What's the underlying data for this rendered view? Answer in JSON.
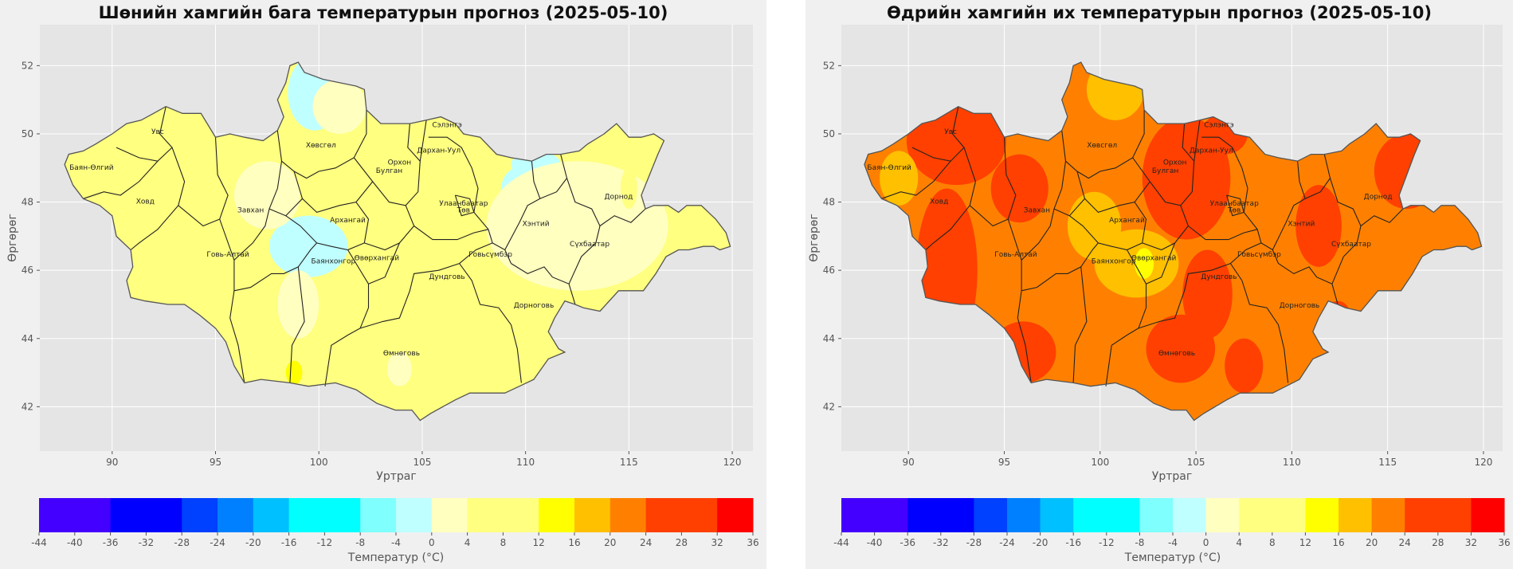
{
  "maps": [
    {
      "id": "left",
      "title": "Шөнийн хамгийн бага температурын прогноз (2025-05-10)",
      "xlabel": "Уртраг",
      "ylabel": "Өргөрөг",
      "xlim": [
        86.5,
        121
      ],
      "ylim": [
        40.7,
        53.2
      ],
      "xticks": [
        90,
        95,
        100,
        105,
        110,
        115,
        120
      ],
      "yticks": [
        42,
        44,
        46,
        48,
        50,
        52
      ],
      "base_color": "#ffff80",
      "grid": true,
      "colorbar_label": "Температур (°C)"
    },
    {
      "id": "right",
      "title": "Өдрийн хамгийн их температурын прогноз (2025-05-10)",
      "xlabel": "Уртраг",
      "ylabel": "Өргөрөг",
      "xlim": [
        86.5,
        121
      ],
      "ylim": [
        40.7,
        53.2
      ],
      "xticks": [
        90,
        95,
        100,
        105,
        110,
        115,
        120
      ],
      "yticks": [
        42,
        44,
        46,
        48,
        50,
        52
      ],
      "base_color": "#ff8000",
      "grid": true,
      "colorbar_label": "Температур (°C)"
    }
  ],
  "colorbar": {
    "ticks": [
      -44,
      -40,
      -36,
      -32,
      -28,
      -24,
      -20,
      -16,
      -12,
      -8,
      -4,
      0,
      4,
      8,
      12,
      16,
      20,
      24,
      28,
      32,
      36
    ],
    "bins": [
      {
        "from": -44,
        "to": -36,
        "color": "#4400ff"
      },
      {
        "from": -36,
        "to": -28,
        "color": "#0000ff"
      },
      {
        "from": -28,
        "to": -24,
        "color": "#0040ff"
      },
      {
        "from": -24,
        "to": -20,
        "color": "#0080ff"
      },
      {
        "from": -20,
        "to": -16,
        "color": "#00c0ff"
      },
      {
        "from": -16,
        "to": -8,
        "color": "#00ffff"
      },
      {
        "from": -8,
        "to": -4,
        "color": "#80ffff"
      },
      {
        "from": -4,
        "to": 0,
        "color": "#c0ffff"
      },
      {
        "from": 0,
        "to": 4,
        "color": "#ffffc0"
      },
      {
        "from": 4,
        "to": 12,
        "color": "#ffff80"
      },
      {
        "from": 12,
        "to": 16,
        "color": "#ffff00"
      },
      {
        "from": 16,
        "to": 20,
        "color": "#ffc000"
      },
      {
        "from": 20,
        "to": 24,
        "color": "#ff8000"
      },
      {
        "from": 24,
        "to": 32,
        "color": "#ff4000"
      },
      {
        "from": 32,
        "to": 36,
        "color": "#ff0000"
      }
    ]
  },
  "border": [
    [
      87.7,
      49.1
    ],
    [
      87.9,
      49.4
    ],
    [
      88.6,
      49.5
    ],
    [
      89.2,
      49.7
    ],
    [
      90.0,
      50.0
    ],
    [
      90.7,
      50.3
    ],
    [
      91.4,
      50.4
    ],
    [
      92.0,
      50.6
    ],
    [
      92.6,
      50.8
    ],
    [
      93.4,
      50.6
    ],
    [
      94.3,
      50.6
    ],
    [
      95.0,
      49.9
    ],
    [
      95.7,
      50.0
    ],
    [
      96.4,
      49.9
    ],
    [
      97.3,
      49.8
    ],
    [
      98.0,
      50.1
    ],
    [
      98.3,
      50.5
    ],
    [
      98.0,
      51.0
    ],
    [
      98.4,
      51.5
    ],
    [
      98.6,
      52.0
    ],
    [
      99.0,
      52.1
    ],
    [
      99.3,
      51.8
    ],
    [
      100.2,
      51.6
    ],
    [
      101.0,
      51.5
    ],
    [
      101.8,
      51.4
    ],
    [
      102.2,
      51.3
    ],
    [
      102.3,
      50.7
    ],
    [
      103.0,
      50.3
    ],
    [
      103.7,
      50.3
    ],
    [
      104.4,
      50.3
    ],
    [
      105.2,
      50.4
    ],
    [
      105.9,
      50.5
    ],
    [
      106.6,
      50.3
    ],
    [
      107.0,
      50.0
    ],
    [
      107.8,
      49.9
    ],
    [
      108.6,
      49.4
    ],
    [
      109.3,
      49.3
    ],
    [
      110.3,
      49.2
    ],
    [
      111.0,
      49.4
    ],
    [
      111.7,
      49.4
    ],
    [
      112.6,
      49.5
    ],
    [
      113.0,
      49.7
    ],
    [
      113.8,
      50.0
    ],
    [
      114.4,
      50.3
    ],
    [
      115.0,
      49.9
    ],
    [
      115.6,
      49.9
    ],
    [
      116.2,
      50.0
    ],
    [
      116.7,
      49.8
    ],
    [
      116.4,
      49.4
    ],
    [
      115.6,
      48.2
    ],
    [
      115.8,
      47.8
    ],
    [
      116.2,
      47.9
    ],
    [
      116.9,
      47.9
    ],
    [
      117.4,
      47.7
    ],
    [
      117.8,
      47.9
    ],
    [
      118.5,
      47.9
    ],
    [
      119.2,
      47.5
    ],
    [
      119.7,
      47.1
    ],
    [
      119.9,
      46.7
    ],
    [
      119.4,
      46.6
    ],
    [
      119.1,
      46.7
    ],
    [
      118.6,
      46.7
    ],
    [
      117.9,
      46.6
    ],
    [
      117.4,
      46.6
    ],
    [
      116.8,
      46.4
    ],
    [
      116.6,
      46.2
    ],
    [
      116.3,
      45.9
    ],
    [
      115.7,
      45.4
    ],
    [
      115.0,
      45.4
    ],
    [
      114.5,
      45.4
    ],
    [
      113.6,
      44.8
    ],
    [
      112.8,
      44.9
    ],
    [
      112.4,
      45.0
    ],
    [
      111.9,
      45.1
    ],
    [
      111.4,
      44.6
    ],
    [
      111.1,
      44.2
    ],
    [
      111.6,
      43.7
    ],
    [
      111.9,
      43.6
    ],
    [
      111.1,
      43.4
    ],
    [
      110.4,
      42.8
    ],
    [
      109.7,
      42.6
    ],
    [
      109.0,
      42.4
    ],
    [
      108.1,
      42.4
    ],
    [
      107.3,
      42.4
    ],
    [
      106.6,
      42.2
    ],
    [
      105.4,
      41.8
    ],
    [
      104.9,
      41.6
    ],
    [
      104.5,
      41.9
    ],
    [
      103.7,
      41.9
    ],
    [
      102.8,
      42.1
    ],
    [
      101.8,
      42.5
    ],
    [
      100.8,
      42.7
    ],
    [
      99.5,
      42.6
    ],
    [
      98.6,
      42.7
    ],
    [
      97.2,
      42.8
    ],
    [
      96.4,
      42.7
    ],
    [
      95.9,
      43.2
    ],
    [
      95.5,
      43.9
    ],
    [
      95.0,
      44.3
    ],
    [
      94.2,
      44.7
    ],
    [
      93.5,
      45.0
    ],
    [
      92.7,
      45.0
    ],
    [
      91.6,
      45.1
    ],
    [
      90.9,
      45.2
    ],
    [
      90.7,
      45.7
    ],
    [
      91.0,
      46.1
    ],
    [
      90.9,
      46.6
    ],
    [
      90.2,
      47.0
    ],
    [
      90.0,
      47.6
    ],
    [
      89.4,
      47.9
    ],
    [
      88.6,
      48.1
    ],
    [
      88.1,
      48.5
    ],
    [
      87.7,
      49.1
    ]
  ],
  "provinces": [
    {
      "name": "Увс",
      "lon": 92.2,
      "lat": 50.0
    },
    {
      "name": "Баян-Өлгий",
      "lon": 89.0,
      "lat": 48.95
    },
    {
      "name": "Ховд",
      "lon": 91.6,
      "lat": 47.95
    },
    {
      "name": "Завхан",
      "lon": 96.7,
      "lat": 47.7
    },
    {
      "name": "Хөвсгөл",
      "lon": 100.1,
      "lat": 49.6
    },
    {
      "name": "Сэлэнгэ",
      "lon": 106.2,
      "lat": 50.2
    },
    {
      "name": "Дархан-Уул",
      "lon": 105.8,
      "lat": 49.45
    },
    {
      "name": "Орхон",
      "lon": 103.9,
      "lat": 49.1
    },
    {
      "name": "Булган",
      "lon": 103.4,
      "lat": 48.85
    },
    {
      "name": "Улаанбаатар",
      "lon": 107.0,
      "lat": 47.9
    },
    {
      "name": "Төв",
      "lon": 107.0,
      "lat": 47.7
    },
    {
      "name": "Архангай",
      "lon": 101.4,
      "lat": 47.4
    },
    {
      "name": "Дорнод",
      "lon": 114.5,
      "lat": 48.1
    },
    {
      "name": "Хэнтий",
      "lon": 110.5,
      "lat": 47.3
    },
    {
      "name": "Говь-Алтай",
      "lon": 95.6,
      "lat": 46.4
    },
    {
      "name": "Баянхонгор",
      "lon": 100.7,
      "lat": 46.2
    },
    {
      "name": "Өвөрхангай",
      "lon": 102.8,
      "lat": 46.3
    },
    {
      "name": "Говьсүмбэр",
      "lon": 108.3,
      "lat": 46.4
    },
    {
      "name": "Сүхбаатар",
      "lon": 113.1,
      "lat": 46.7
    },
    {
      "name": "Дундговь",
      "lon": 106.2,
      "lat": 45.75
    },
    {
      "name": "Дорноговь",
      "lon": 110.4,
      "lat": 44.9
    },
    {
      "name": "Өмнөговь",
      "lon": 104.0,
      "lat": 43.5
    }
  ],
  "province_boundaries": [
    [
      [
        92.6,
        50.8
      ],
      [
        92.3,
        50.0
      ],
      [
        92.9,
        49.6
      ],
      [
        92.2,
        49.2
      ],
      [
        91.3,
        49.3
      ],
      [
        90.2,
        49.6
      ]
    ],
    [
      [
        88.6,
        48.1
      ],
      [
        89.6,
        48.3
      ],
      [
        90.4,
        48.2
      ],
      [
        91.3,
        48.6
      ],
      [
        92.2,
        49.2
      ]
    ],
    [
      [
        92.9,
        49.6
      ],
      [
        93.5,
        48.6
      ],
      [
        93.2,
        47.9
      ],
      [
        92.2,
        47.2
      ],
      [
        91.3,
        46.8
      ],
      [
        90.9,
        46.6
      ]
    ],
    [
      [
        95.0,
        49.9
      ],
      [
        95.1,
        48.8
      ],
      [
        95.6,
        48.2
      ],
      [
        95.2,
        47.5
      ],
      [
        94.4,
        47.3
      ],
      [
        93.2,
        47.9
      ]
    ],
    [
      [
        98.0,
        50.1
      ],
      [
        98.2,
        49.2
      ],
      [
        98.8,
        48.9
      ],
      [
        99.4,
        48.7
      ],
      [
        100.0,
        48.9
      ],
      [
        100.8,
        49.0
      ],
      [
        101.7,
        49.3
      ],
      [
        102.3,
        50.0
      ],
      [
        102.3,
        50.7
      ]
    ],
    [
      [
        98.2,
        49.2
      ],
      [
        98.0,
        48.4
      ],
      [
        97.6,
        47.8
      ],
      [
        97.4,
        47.3
      ],
      [
        96.8,
        46.8
      ],
      [
        95.9,
        46.3
      ],
      [
        95.2,
        47.5
      ]
    ],
    [
      [
        98.8,
        48.9
      ],
      [
        99.2,
        48.1
      ],
      [
        98.4,
        47.6
      ],
      [
        97.6,
        47.8
      ]
    ],
    [
      [
        99.2,
        48.1
      ],
      [
        99.9,
        47.7
      ],
      [
        101.0,
        47.9
      ],
      [
        101.8,
        48.0
      ],
      [
        102.4,
        47.5
      ],
      [
        102.2,
        46.8
      ],
      [
        101.4,
        46.6
      ],
      [
        100.6,
        46.7
      ],
      [
        99.9,
        46.8
      ],
      [
        99.1,
        47.3
      ],
      [
        98.4,
        47.6
      ]
    ],
    [
      [
        101.7,
        49.3
      ],
      [
        102.6,
        48.6
      ],
      [
        103.4,
        48.0
      ],
      [
        104.2,
        47.9
      ],
      [
        104.8,
        48.3
      ],
      [
        104.9,
        49.2
      ],
      [
        105.2,
        50.4
      ]
    ],
    [
      [
        102.6,
        48.6
      ],
      [
        101.8,
        48.0
      ]
    ],
    [
      [
        104.4,
        50.3
      ],
      [
        104.3,
        49.6
      ],
      [
        104.9,
        49.2
      ]
    ],
    [
      [
        105.3,
        49.9
      ],
      [
        106.2,
        49.9
      ],
      [
        106.9,
        49.6
      ],
      [
        107.4,
        49.0
      ],
      [
        107.7,
        48.4
      ],
      [
        107.5,
        47.7
      ],
      [
        108.2,
        47.2
      ],
      [
        108.4,
        46.8
      ],
      [
        109.0,
        46.6
      ],
      [
        109.3,
        46.2
      ]
    ],
    [
      [
        104.2,
        47.9
      ],
      [
        104.6,
        47.3
      ],
      [
        103.9,
        46.8
      ],
      [
        103.2,
        46.6
      ],
      [
        102.2,
        46.8
      ]
    ],
    [
      [
        96.4,
        42.7
      ],
      [
        96.1,
        43.8
      ],
      [
        95.7,
        44.6
      ],
      [
        95.9,
        45.4
      ],
      [
        95.9,
        46.3
      ]
    ],
    [
      [
        95.9,
        45.4
      ],
      [
        96.7,
        45.5
      ],
      [
        97.7,
        45.9
      ],
      [
        98.3,
        45.9
      ],
      [
        99.0,
        46.1
      ],
      [
        99.6,
        46.6
      ],
      [
        99.9,
        46.8
      ]
    ],
    [
      [
        98.6,
        42.7
      ],
      [
        98.7,
        43.8
      ],
      [
        99.3,
        44.5
      ],
      [
        99.0,
        46.1
      ]
    ],
    [
      [
        100.3,
        42.6
      ],
      [
        100.6,
        43.8
      ],
      [
        101.4,
        44.1
      ],
      [
        102.0,
        44.3
      ],
      [
        102.4,
        44.9
      ],
      [
        102.4,
        45.6
      ],
      [
        101.9,
        46.1
      ],
      [
        101.4,
        46.6
      ]
    ],
    [
      [
        102.4,
        45.6
      ],
      [
        103.2,
        45.8
      ],
      [
        103.9,
        46.8
      ]
    ],
    [
      [
        102.0,
        44.3
      ],
      [
        103.1,
        44.5
      ],
      [
        103.9,
        44.6
      ],
      [
        104.4,
        45.4
      ],
      [
        104.6,
        45.9
      ],
      [
        105.8,
        46.0
      ],
      [
        106.8,
        46.2
      ],
      [
        107.4,
        45.7
      ],
      [
        107.8,
        45.0
      ],
      [
        108.7,
        44.9
      ],
      [
        109.3,
        44.4
      ],
      [
        109.6,
        43.7
      ],
      [
        109.8,
        42.7
      ]
    ],
    [
      [
        104.6,
        47.3
      ],
      [
        105.5,
        46.9
      ],
      [
        106.7,
        46.9
      ],
      [
        107.5,
        47.1
      ],
      [
        108.2,
        47.2
      ]
    ],
    [
      [
        106.8,
        46.2
      ],
      [
        107.6,
        46.6
      ],
      [
        108.4,
        46.8
      ]
    ],
    [
      [
        109.3,
        46.2
      ],
      [
        110.1,
        45.9
      ],
      [
        110.9,
        46.1
      ],
      [
        111.3,
        45.8
      ],
      [
        112.1,
        45.6
      ],
      [
        112.4,
        45.0
      ]
    ],
    [
      [
        109.0,
        46.6
      ],
      [
        109.7,
        47.4
      ],
      [
        110.1,
        47.9
      ],
      [
        110.7,
        48.1
      ],
      [
        111.5,
        48.3
      ],
      [
        112.0,
        48.7
      ],
      [
        111.7,
        49.4
      ]
    ],
    [
      [
        110.3,
        49.2
      ],
      [
        110.4,
        48.6
      ],
      [
        110.7,
        48.1
      ]
    ],
    [
      [
        112.0,
        48.7
      ],
      [
        112.4,
        48.0
      ],
      [
        113.2,
        47.8
      ],
      [
        113.6,
        47.3
      ],
      [
        113.4,
        46.8
      ],
      [
        112.7,
        46.4
      ],
      [
        112.1,
        45.6
      ]
    ],
    [
      [
        113.6,
        47.3
      ],
      [
        114.3,
        47.6
      ],
      [
        115.1,
        47.4
      ],
      [
        115.8,
        47.8
      ]
    ],
    [
      [
        106.6,
        48.2
      ],
      [
        107.3,
        48.1
      ],
      [
        107.5,
        47.7
      ],
      [
        106.9,
        47.6
      ],
      [
        106.6,
        48.2
      ]
    ]
  ]
}
